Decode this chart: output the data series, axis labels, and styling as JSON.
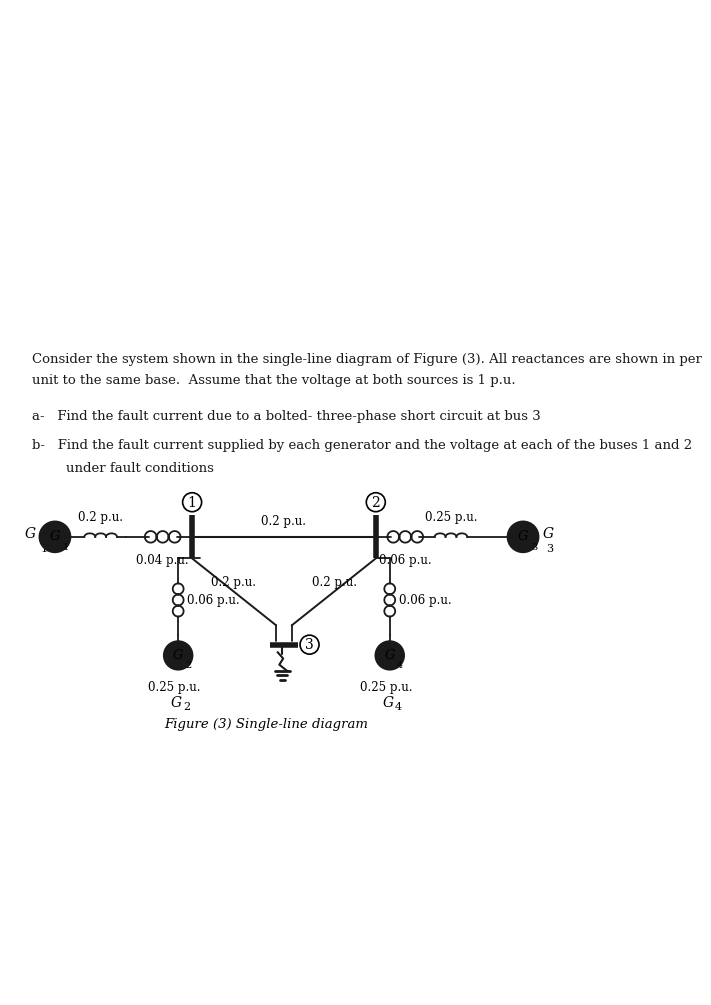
{
  "bg_color": "#ffffff",
  "text_color": "#1a1a1a",
  "line_color": "#1a1a1a",
  "fig_width": 7.2,
  "fig_height": 12.8,
  "title_line1": "Consider the system shown in the single-line diagram of Figure (3). All reactances are shown in per",
  "title_line2": "unit to the same base.  Assume that the voltage at both sources is 1 p.u.",
  "part_a": "a-   Find the fault current due to a bolted- three-phase short circuit at bus 3",
  "part_b1": "b-   Find the fault current supplied by each generator and the voltage at each of the buses 1 and 2",
  "part_b2": "        under fault conditions",
  "fig_caption": "Figure (3) Single-line diagram",
  "label_02_left": "0.2 p.u.",
  "label_004": "0.04 p.u.",
  "label_02_mid": "0.2 p.u.",
  "label_006_right_top": "0.06 p.u.",
  "label_025_right": "0.25 p.u.",
  "label_02_left2": "0.2 p.u.",
  "label_02_right2": "0.2 p.u.",
  "label_006_left_bot": "0.06 p.u.",
  "label_025_left_bot": "0.25 p.u.",
  "label_006_right_bot": "0.06 p.u.",
  "label_025_right_bot": "0.25 p.u."
}
